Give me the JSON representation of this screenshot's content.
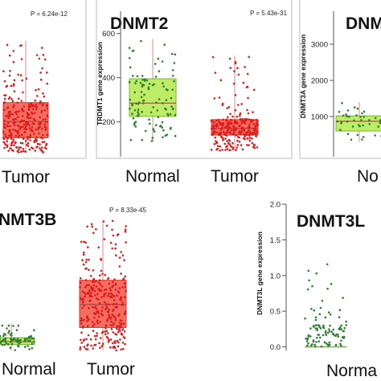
{
  "colors": {
    "normal_box": "#b8ea55",
    "normal_box_stroke": "#76b82a",
    "normal_point": "#2e7d32",
    "tumor_box": "#f25d4f",
    "tumor_box_stroke": "#d9362b",
    "tumor_point": "#e01b1b",
    "whisker": "#e08a8a",
    "median": "#9b3a2f"
  },
  "chart_data": [
    {
      "id": "dnmt1",
      "type": "box",
      "title": "",
      "ylabel": "",
      "pvalue": "P = 6.24e-12",
      "categories": [
        "Tumor"
      ],
      "ylim": [
        0,
        1000
      ],
      "yticks": [],
      "series": [
        {
          "name": "Tumor",
          "q1": 115,
          "median": 240,
          "q3": 385,
          "whisker_low": 0,
          "whisker_high": 860,
          "n_points": 300
        }
      ]
    },
    {
      "id": "dnmt2",
      "type": "box",
      "title": "DNMT2",
      "ylabel": "TRDMT1 gene expression",
      "pvalue": "P = 5.43e-31",
      "categories": [
        "Normal",
        "Tumor"
      ],
      "ylim": [
        60,
        650
      ],
      "yticks": [
        200,
        400,
        600
      ],
      "series": [
        {
          "name": "Normal",
          "q1": 225,
          "median": 285,
          "q3": 395,
          "whisker_low": 110,
          "whisker_high": 575,
          "n_points": 110
        },
        {
          "name": "Tumor",
          "q1": 140,
          "median": 170,
          "q3": 210,
          "whisker_low": 70,
          "whisker_high": 500,
          "n_points": 280
        }
      ]
    },
    {
      "id": "dnmt3a",
      "type": "box",
      "title": "DNMT",
      "ylabel": "DNMT3A gene expression",
      "pvalue": "",
      "categories": [
        "No"
      ],
      "ylim": [
        0,
        3600
      ],
      "yticks": [
        1000,
        2000,
        3000
      ],
      "series": [
        {
          "name": "Normal",
          "q1": 600,
          "median": 870,
          "q3": 1020,
          "whisker_low": 300,
          "whisker_high": 1400,
          "n_points": 40
        }
      ]
    },
    {
      "id": "dnmt3b",
      "type": "box",
      "title": "NMT3B",
      "ylabel": "",
      "pvalue": "P = 8.33e-45",
      "categories": [
        "Normal",
        "Tumor"
      ],
      "ylim": [
        0,
        1000
      ],
      "yticks": [],
      "series": [
        {
          "name": "Normal",
          "q1": 45,
          "median": 65,
          "q3": 95,
          "whisker_low": 0,
          "whisker_high": 200,
          "n_points": 90
        },
        {
          "name": "Tumor",
          "q1": 170,
          "median": 340,
          "q3": 520,
          "whisker_low": 0,
          "whisker_high": 960,
          "n_points": 330
        }
      ]
    },
    {
      "id": "dnmt3l",
      "type": "box",
      "title": "DNMT3L",
      "ylabel": "DNMT3L gene expression",
      "pvalue": "",
      "categories": [
        "Norma"
      ],
      "ylim": [
        -0.05,
        2.0
      ],
      "yticks": [
        "0.0",
        "0.5",
        "1.0",
        "1.5",
        "2.0"
      ],
      "series": [
        {
          "name": "Normal",
          "q1": 0,
          "median": 0,
          "q3": 0,
          "whisker_low": 0,
          "whisker_high": 0.3,
          "n_points": 100
        }
      ]
    }
  ]
}
